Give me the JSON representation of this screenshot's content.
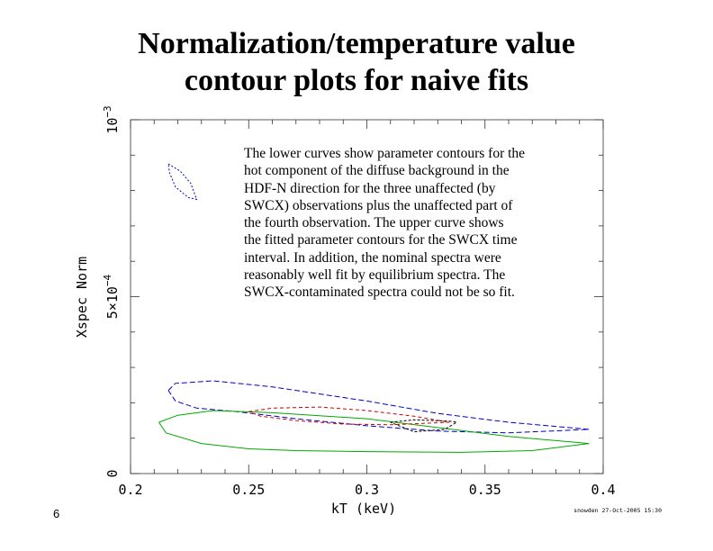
{
  "slide": {
    "title_lines": [
      "Normalization/temperature value",
      "contour plots for naive fits"
    ],
    "caption_lines": [
      "The lower curves show parameter contours for the",
      "hot component of the diffuse background in the",
      "HDF-N direction for the three unaffected  (by",
      "SWCX) observations plus the unaffected part of",
      "the fourth observation.  The upper curve shows",
      "the fitted parameter contours for the SWCX time",
      "interval.  In addition, the nominal spectra were",
      "reasonably well fit by equilibrium spectra.  The",
      "SWCX-contaminated spectra could not be so fit."
    ],
    "page_number": "6"
  },
  "chart_data": {
    "type": "line",
    "title": "",
    "xlabel": "kT (keV)",
    "ylabel": "Xspec Norm",
    "xlim": [
      0.2,
      0.4
    ],
    "ylim": [
      0,
      0.001
    ],
    "x_ticks": [
      {
        "value": 0.2,
        "label": "0.2"
      },
      {
        "value": 0.25,
        "label": "0.25"
      },
      {
        "value": 0.3,
        "label": "0.3"
      },
      {
        "value": 0.35,
        "label": "0.35"
      },
      {
        "value": 0.4,
        "label": "0.4"
      }
    ],
    "y_tick_labels": [
      {
        "value": 0,
        "label": "0"
      },
      {
        "value": 0.0005,
        "label": "5×10",
        "exponent": "−4"
      },
      {
        "value": 0.001,
        "label": "10",
        "exponent": "−3"
      }
    ],
    "stamp": "snowden 27-Oct-2005 15:30",
    "series": [
      {
        "name": "SWCX interval contour",
        "color": "#0000cc",
        "dash": "2,2",
        "points": [
          [
            0.216,
            0.000875
          ],
          [
            0.221,
            0.000855
          ],
          [
            0.2255,
            0.00082
          ],
          [
            0.228,
            0.000775
          ],
          [
            0.2245,
            0.00078
          ],
          [
            0.219,
            0.00081
          ],
          [
            0.2165,
            0.00085
          ],
          [
            0.216,
            0.000875
          ]
        ]
      },
      {
        "name": "unaffected contour outer (blue)",
        "color": "#0000cc",
        "dash": "6,3",
        "points": [
          [
            0.216,
            0.000235
          ],
          [
            0.219,
            0.000255
          ],
          [
            0.235,
            0.000262
          ],
          [
            0.26,
            0.000245
          ],
          [
            0.3,
            0.000205
          ],
          [
            0.33,
            0.00017
          ],
          [
            0.36,
            0.000145
          ],
          [
            0.394,
            0.000125
          ],
          [
            0.36,
            0.000115
          ],
          [
            0.33,
            0.00012
          ],
          [
            0.3,
            0.000135
          ],
          [
            0.27,
            0.000155
          ],
          [
            0.245,
            0.000175
          ],
          [
            0.228,
            0.000185
          ],
          [
            0.219,
            0.000205
          ],
          [
            0.216,
            0.000235
          ]
        ]
      },
      {
        "name": "unaffected contour outer (green)",
        "color": "#00aa00",
        "dash": "",
        "points": [
          [
            0.212,
            0.000145
          ],
          [
            0.22,
            0.000165
          ],
          [
            0.235,
            0.000178
          ],
          [
            0.26,
            0.000172
          ],
          [
            0.3,
            0.000155
          ],
          [
            0.33,
            0.00013
          ],
          [
            0.36,
            0.000105
          ],
          [
            0.394,
            8.5e-05
          ],
          [
            0.37,
            6.5e-05
          ],
          [
            0.34,
            6e-05
          ],
          [
            0.3,
            6.2e-05
          ],
          [
            0.27,
            6.5e-05
          ],
          [
            0.25,
            7e-05
          ],
          [
            0.23,
            8.5e-05
          ],
          [
            0.215,
            0.000115
          ],
          [
            0.212,
            0.000145
          ]
        ]
      },
      {
        "name": "unaffected contour inner (red)",
        "color": "#cc0000",
        "dash": "4,3",
        "points": [
          [
            0.25,
            0.000175
          ],
          [
            0.26,
            0.000185
          ],
          [
            0.28,
            0.000188
          ],
          [
            0.3,
            0.000178
          ],
          [
            0.32,
            0.000162
          ],
          [
            0.335,
            0.000145
          ],
          [
            0.31,
            0.000138
          ],
          [
            0.29,
            0.00014
          ],
          [
            0.27,
            0.00015
          ],
          [
            0.255,
            0.000162
          ],
          [
            0.25,
            0.000175
          ]
        ]
      },
      {
        "name": "unaffected contour inner (black)",
        "color": "#000000",
        "dash": "3,2",
        "points": [
          [
            0.31,
            0.000145
          ],
          [
            0.32,
            0.000152
          ],
          [
            0.335,
            0.000148
          ],
          [
            0.338,
            0.000145
          ],
          [
            0.333,
            0.000125
          ],
          [
            0.32,
            0.000118
          ],
          [
            0.31,
            0.000145
          ]
        ]
      }
    ]
  }
}
